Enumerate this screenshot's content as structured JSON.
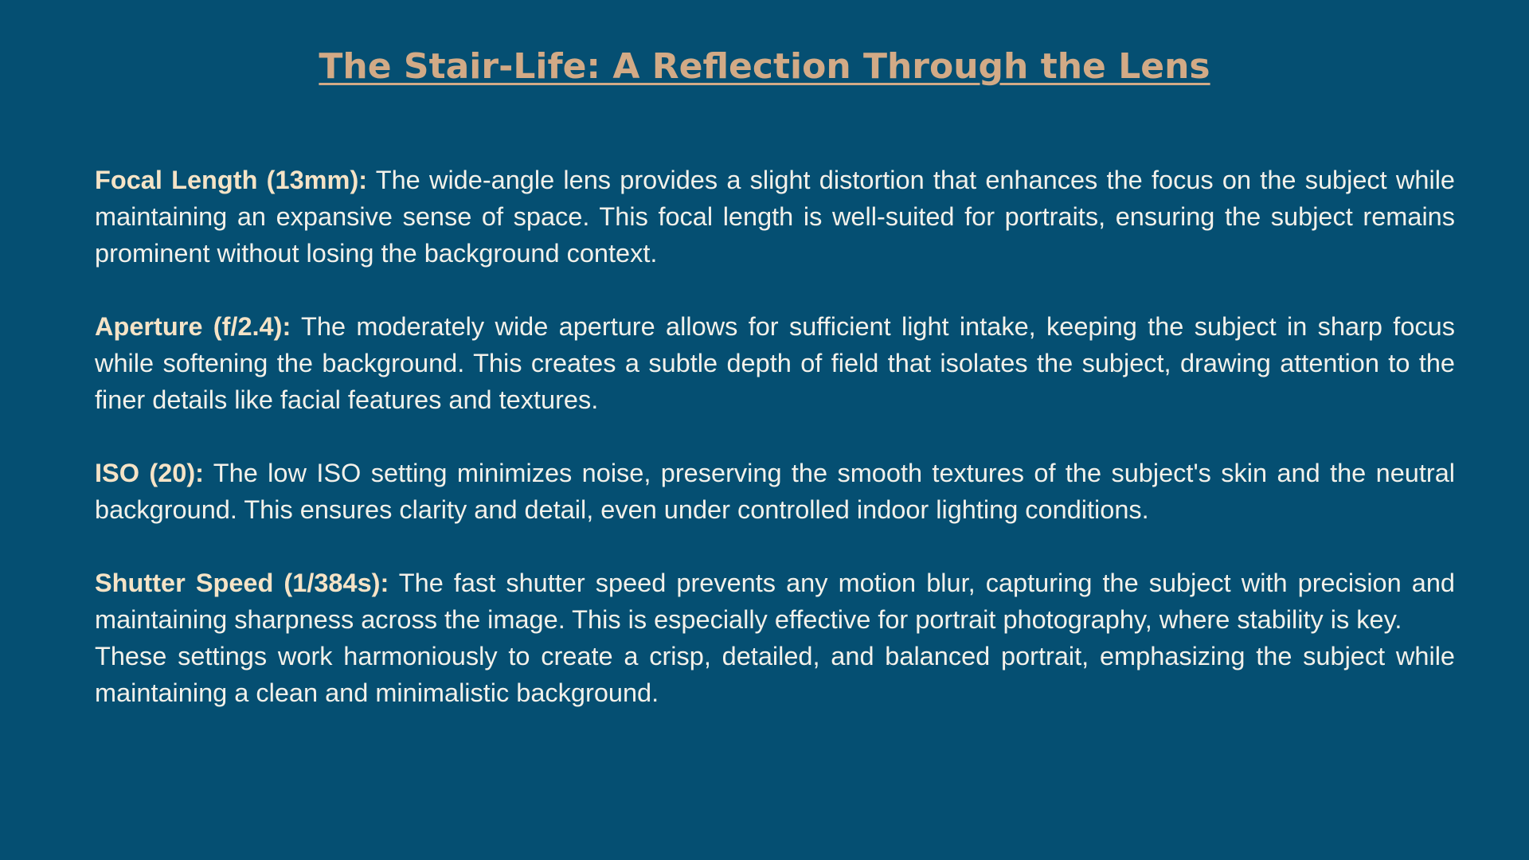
{
  "title": "The Stair-Life: A Reflection Through the Lens",
  "sections": [
    {
      "term": "Focal Length (13mm):",
      "text": " The wide-angle lens provides a slight distortion that enhances the focus on the subject while maintaining an expansive sense of space. This focal length is well-suited for portraits, ensuring the subject remains prominent without losing the background context."
    },
    {
      "term": "Aperture (f/2.4):",
      "text": " The moderately wide aperture allows for sufficient light intake, keeping the subject in sharp focus while softening the background. This creates a subtle depth of field that isolates the subject, drawing attention to the finer details like facial features and textures."
    },
    {
      "term": "ISO (20):",
      "text": " The low ISO setting minimizes noise, preserving the smooth textures of the subject's skin and the neutral background. This ensures clarity and detail, even under controlled indoor lighting conditions."
    },
    {
      "term": "Shutter Speed (1/384s):",
      "text": " The fast shutter speed prevents any motion blur, capturing the subject with precision and maintaining sharpness across the image. This is especially effective for portrait photography, where stability is key."
    }
  ],
  "conclusion": "These settings work harmoniously to create a crisp, detailed, and balanced portrait, emphasizing the subject while maintaining a clean and minimalistic background.",
  "colors": {
    "background": "#054f72",
    "title": "#d2aa86",
    "term": "#f5e3c6",
    "body_text": "#f3f1ea"
  }
}
